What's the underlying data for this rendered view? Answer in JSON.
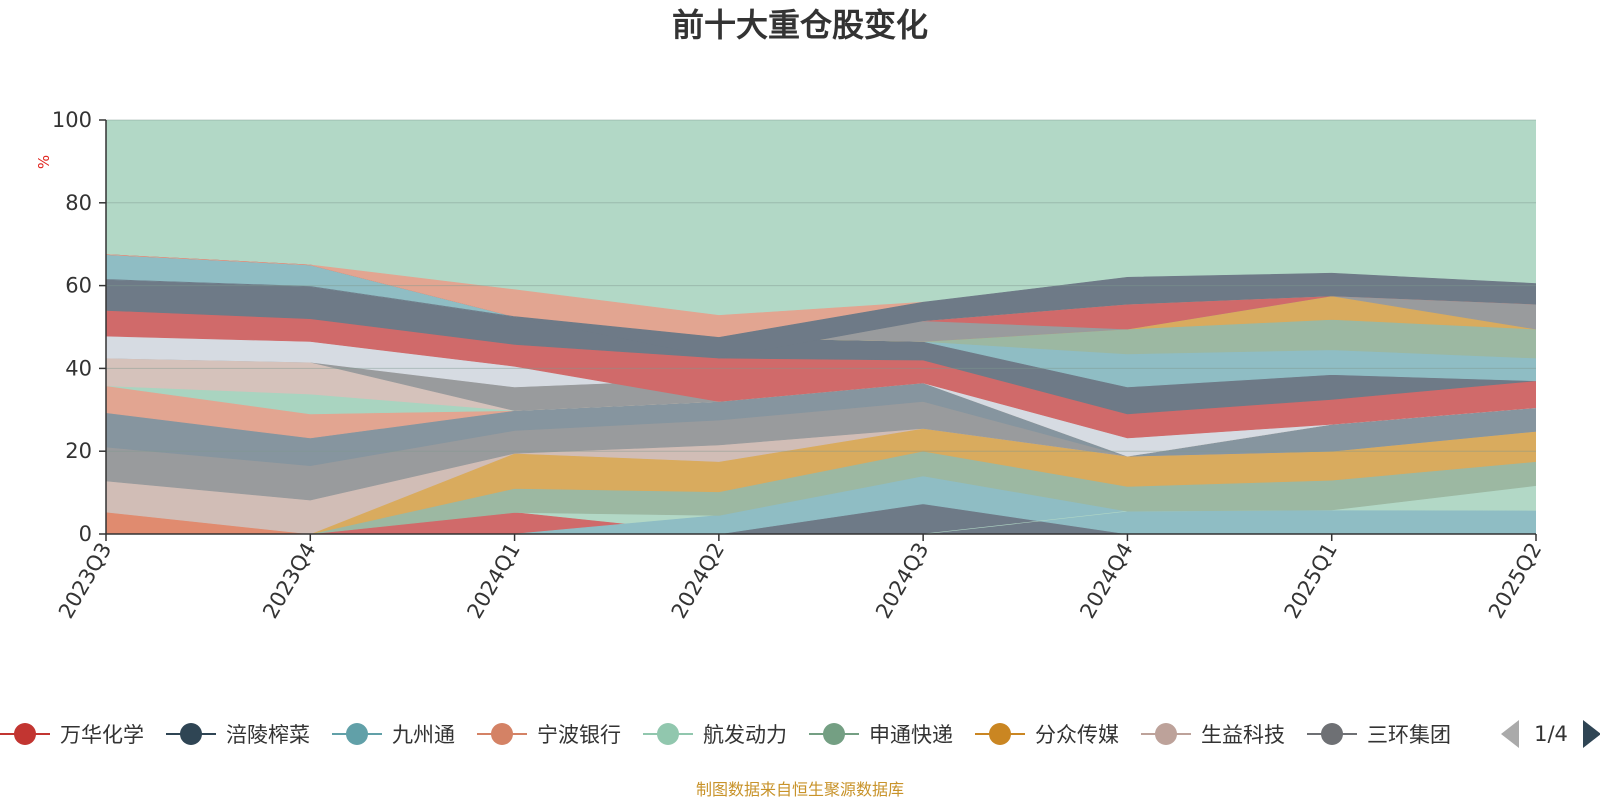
{
  "chart_data": {
    "type": "area",
    "title": "前十大重仓股变化",
    "ylabel": "%",
    "ylim": [
      0,
      100
    ],
    "y_ticks": [
      "0",
      "20",
      "40",
      "60",
      "80",
      "100"
    ],
    "categories": [
      "2023Q3",
      "2023Q4",
      "2024Q1",
      "2024Q2",
      "2024Q3",
      "2024Q4",
      "2025Q1",
      "2025Q2"
    ],
    "grid": true,
    "background_color": "#b2d8c6",
    "bands": [
      {
        "color": "#e08b6f",
        "lower": [
          0,
          0,
          0,
          0,
          0,
          0,
          0,
          0
        ],
        "upper": [
          5.3,
          0,
          0,
          0,
          0,
          0,
          0,
          0
        ]
      },
      {
        "color": "#d06a6a",
        "lower": [
          0,
          0,
          0,
          0,
          0,
          0,
          0,
          0
        ],
        "upper": [
          0,
          0,
          5.2,
          0,
          0,
          0,
          0,
          0
        ]
      },
      {
        "color": "#6e7a87",
        "lower": [
          0,
          0,
          0,
          0,
          0,
          0,
          0,
          0
        ],
        "upper": [
          0,
          0,
          0,
          0,
          7.3,
          0,
          0,
          0
        ]
      },
      {
        "color": "#8fbdc4",
        "lower": [
          0,
          0,
          0,
          0,
          7.3,
          0,
          0,
          0
        ],
        "upper": [
          0,
          0,
          0,
          4.5,
          14.0,
          5.5,
          5.8,
          5.7
        ]
      },
      {
        "color": "#b2d8c6",
        "lower": [
          0,
          0,
          0,
          0,
          0,
          5.5,
          5.8,
          5.7
        ],
        "upper": [
          0,
          0,
          0,
          0,
          0,
          5.5,
          5.8,
          11.7
        ]
      },
      {
        "color": "#9cb8a2",
        "lower": [
          0,
          0,
          5.2,
          4.5,
          14.0,
          5.5,
          5.8,
          11.7
        ],
        "upper": [
          0,
          0,
          11.0,
          10.2,
          20.0,
          11.5,
          13.0,
          17.5
        ]
      },
      {
        "color": "#d9ab5e",
        "lower": [
          0,
          0,
          11.0,
          10.2,
          20.0,
          11.5,
          13.0,
          17.5
        ],
        "upper": [
          0,
          0,
          19.5,
          17.5,
          25.5,
          18.8,
          20.0,
          24.8
        ]
      },
      {
        "color": "#d1bdb6",
        "lower": [
          5.3,
          0,
          19.5,
          17.5,
          25.5,
          18.8,
          20.0,
          24.8
        ],
        "upper": [
          12.8,
          8.2,
          19.5,
          21.5,
          25.5,
          18.8,
          20.0,
          24.8
        ]
      },
      {
        "color": "#999b9d",
        "lower": [
          12.8,
          8.2,
          19.5,
          21.5,
          25.5,
          18.8,
          20.0,
          24.8
        ],
        "upper": [
          21.0,
          16.5,
          25.0,
          27.5,
          32.0,
          18.8,
          20.0,
          24.8
        ]
      },
      {
        "color": "#86959f",
        "lower": [
          21.0,
          16.5,
          25.0,
          27.5,
          32.0,
          18.8,
          20.0,
          24.8
        ],
        "upper": [
          29.3,
          23.2,
          29.8,
          32.0,
          36.5,
          18.8,
          26.5,
          30.5
        ]
      },
      {
        "color": "#e2a591",
        "lower": [
          29.3,
          23.2,
          29.8,
          32.0,
          36.5,
          18.8,
          26.5,
          30.5
        ],
        "upper": [
          35.8,
          29.0,
          29.8,
          32.0,
          36.5,
          18.8,
          26.5,
          30.5
        ]
      },
      {
        "color": "#a9d4c0",
        "lower": [
          35.8,
          29.0,
          29.8,
          32.0,
          36.5,
          18.8,
          26.5,
          30.5
        ],
        "upper": [
          35.8,
          33.8,
          29.8,
          32.0,
          36.5,
          18.8,
          26.5,
          30.5
        ]
      },
      {
        "color": "#d5c2bb",
        "lower": [
          35.8,
          33.8,
          29.8,
          32.0,
          36.5,
          18.8,
          26.5,
          30.5
        ],
        "upper": [
          42.5,
          41.5,
          29.8,
          32.0,
          36.5,
          18.8,
          26.5,
          30.5
        ]
      },
      {
        "color": "#999b9d",
        "lower": [
          42.5,
          41.5,
          29.8,
          32.0,
          36.5,
          18.8,
          26.5,
          30.5
        ],
        "upper": [
          42.5,
          41.5,
          35.5,
          37.5,
          36.5,
          18.8,
          26.5,
          30.5
        ]
      },
      {
        "color": "#d6dbe2",
        "lower": [
          42.5,
          41.5,
          35.5,
          37.5,
          36.5,
          18.8,
          26.5,
          30.5
        ],
        "upper": [
          47.8,
          46.5,
          40.5,
          42.5,
          36.5,
          23.2,
          26.5,
          30.5
        ]
      },
      {
        "color": "#d06a6a",
        "lower": [
          47.8,
          46.5,
          40.5,
          32.0,
          36.5,
          23.2,
          26.5,
          30.5
        ],
        "upper": [
          54.0,
          52.0,
          45.8,
          42.5,
          42.0,
          29.0,
          32.5,
          37.0
        ]
      },
      {
        "color": "#6e7a87",
        "lower": [
          54.0,
          52.0,
          45.8,
          42.5,
          42.0,
          29.0,
          32.5,
          37.0
        ],
        "upper": [
          61.5,
          59.8,
          52.5,
          47.5,
          46.5,
          35.5,
          38.5,
          37.0
        ]
      },
      {
        "color": "#8fbdc4",
        "lower": [
          61.5,
          59.8,
          52.5,
          47.5,
          46.5,
          35.5,
          38.5,
          37.0
        ],
        "upper": [
          67.5,
          65.0,
          52.5,
          47.5,
          46.5,
          43.5,
          44.5,
          42.5
        ]
      },
      {
        "color": "#9cb8a2",
        "lower": [
          67.5,
          65.0,
          52.5,
          47.5,
          46.5,
          43.5,
          44.5,
          42.5
        ],
        "upper": [
          67.5,
          65.0,
          52.5,
          47.5,
          46.5,
          49.5,
          51.8,
          49.5
        ]
      },
      {
        "color": "#d9ab5e",
        "lower": [
          67.5,
          65.0,
          52.5,
          47.5,
          46.5,
          49.5,
          51.8,
          49.5
        ],
        "upper": [
          67.5,
          65.0,
          52.5,
          47.5,
          46.5,
          49.5,
          57.5,
          49.5
        ]
      },
      {
        "color": "#999b9d",
        "lower": [
          67.5,
          65.0,
          52.5,
          47.5,
          46.5,
          49.5,
          57.5,
          49.5
        ],
        "upper": [
          67.5,
          65.0,
          52.5,
          47.5,
          51.5,
          49.5,
          57.5,
          55.5
        ]
      },
      {
        "color": "#d06a6a",
        "lower": [
          67.5,
          65.0,
          52.5,
          47.5,
          51.5,
          49.5,
          57.5,
          55.5
        ],
        "upper": [
          67.5,
          65.0,
          52.5,
          47.5,
          51.5,
          55.5,
          57.5,
          55.5
        ]
      },
      {
        "color": "#e2a591",
        "lower": [
          67.5,
          65.0,
          52.5,
          47.5,
          51.5,
          55.5,
          57.5,
          55.5
        ],
        "upper": [
          67.5,
          65.0,
          59.0,
          52.8,
          56.0,
          55.5,
          57.5,
          55.5
        ]
      },
      {
        "color": "#6e7a87",
        "lower": [
          61.5,
          59.8,
          52.5,
          42.5,
          51.5,
          55.5,
          57.5,
          55.5
        ],
        "upper": [
          61.5,
          59.8,
          52.5,
          47.5,
          56.0,
          62.0,
          63.0,
          60.5
        ]
      }
    ]
  },
  "legend": {
    "items": [
      {
        "name": "万华化学",
        "color": "#c23531"
      },
      {
        "name": "涪陵榨菜",
        "color": "#2f4554"
      },
      {
        "name": "九州通",
        "color": "#61a0a8"
      },
      {
        "name": "宁波银行",
        "color": "#d48265"
      },
      {
        "name": "航发动力",
        "color": "#91c7ae"
      },
      {
        "name": "申通快递",
        "color": "#749f83"
      },
      {
        "name": "分众传媒",
        "color": "#ca8622"
      },
      {
        "name": "生益科技",
        "color": "#bda29a"
      },
      {
        "name": "三环集团",
        "color": "#6e7074"
      }
    ],
    "page": "1/4",
    "arrow_disabled_color": "#aaaaaa",
    "arrow_active_color": "#2f4554"
  },
  "source": "制图数据来自恒生聚源数据库"
}
